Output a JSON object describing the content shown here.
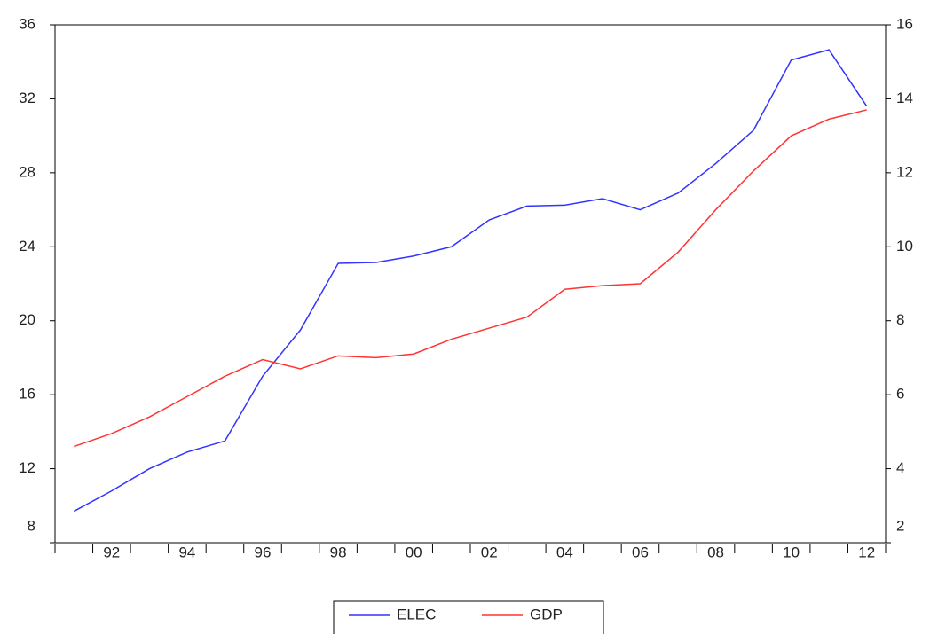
{
  "chart_data": {
    "type": "line",
    "categories": [
      null,
      "92",
      null,
      "94",
      null,
      "96",
      null,
      "98",
      null,
      "00",
      null,
      "02",
      null,
      "04",
      null,
      "06",
      null,
      "08",
      null,
      "10",
      null,
      "12"
    ],
    "series": [
      {
        "name": "ELEC",
        "color": "#3333ff",
        "values": [
          9.7,
          10.8,
          12.0,
          12.9,
          13.5,
          17.0,
          19.5,
          23.1,
          23.15,
          23.5,
          24.0,
          25.45,
          26.2,
          26.25,
          26.6,
          26.0,
          26.9,
          28.5,
          30.3,
          34.1,
          34.65,
          31.6
        ]
      },
      {
        "name": "GDP",
        "color": "#ff3333",
        "axis": "y2",
        "values": [
          4.6,
          4.95,
          5.4,
          5.95,
          6.5,
          6.95,
          6.7,
          7.05,
          7.0,
          7.1,
          7.5,
          7.8,
          8.1,
          8.85,
          8.95,
          9.0,
          9.85,
          11.0,
          12.05,
          13.0,
          13.45,
          13.7
        ]
      }
    ],
    "ylim": [
      8,
      36
    ],
    "yticks": [
      8,
      12,
      16,
      20,
      24,
      28,
      32,
      36
    ],
    "y2lim": [
      2,
      16
    ],
    "y2ticks": [
      2,
      4,
      6,
      8,
      10,
      12,
      14,
      16
    ],
    "legend": "bottom"
  }
}
